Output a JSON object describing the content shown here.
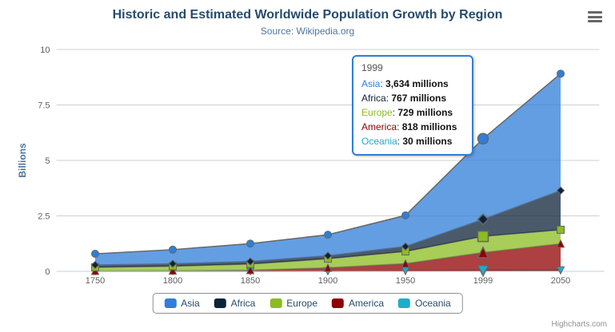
{
  "header": {
    "title": "Historic and Estimated Worldwide Population Growth by Region",
    "subtitle": "Source: Wikipedia.org"
  },
  "chart_data": {
    "type": "area",
    "stacking": "normal",
    "title": "Historic and Estimated Worldwide Population Growth by Region",
    "subtitle": "Source: Wikipedia.org",
    "xlabel": "",
    "ylabel": "Billions",
    "categories": [
      "1750",
      "1800",
      "1850",
      "1900",
      "1950",
      "1999",
      "2050"
    ],
    "yticks": [
      "0",
      "2.5",
      "5",
      "7.5",
      "10"
    ],
    "ylim": [
      0,
      10
    ],
    "values_unit": "millions",
    "y_divisor": 1000,
    "grid": true,
    "legend_position": "bottom",
    "series": [
      {
        "name": "Asia",
        "color": "#2f7ed8",
        "marker": "circle",
        "values": [
          502,
          635,
          809,
          947,
          1402,
          3634,
          5268
        ]
      },
      {
        "name": "Africa",
        "color": "#0d233a",
        "marker": "diamond",
        "values": [
          106,
          107,
          111,
          133,
          221,
          767,
          1766
        ]
      },
      {
        "name": "Europe",
        "color": "#8bbc21",
        "marker": "square",
        "values": [
          163,
          203,
          276,
          408,
          547,
          729,
          628
        ]
      },
      {
        "name": "America",
        "color": "#910000",
        "marker": "triangle",
        "values": [
          18,
          31,
          54,
          156,
          339,
          818,
          1201
        ]
      },
      {
        "name": "Oceania",
        "color": "#1aadce",
        "marker": "triangle-down",
        "values": [
          2,
          2,
          2,
          6,
          13,
          30,
          46
        ]
      }
    ],
    "stack_order_bottom_to_top": [
      "Oceania",
      "America",
      "Europe",
      "Africa",
      "Asia"
    ]
  },
  "tooltip": {
    "header": "1999",
    "hover_index": 5,
    "border_color": "#2f7ed8",
    "unit": "millions",
    "rows": [
      {
        "name": "Asia",
        "value": "3,634"
      },
      {
        "name": "Africa",
        "value": "767"
      },
      {
        "name": "Europe",
        "value": "729"
      },
      {
        "name": "America",
        "value": "818"
      },
      {
        "name": "Oceania",
        "value": "30"
      }
    ]
  },
  "legend": {
    "items": [
      "Asia",
      "Africa",
      "Europe",
      "America",
      "Oceania"
    ]
  },
  "colors": {
    "title": "#274b6d",
    "subtitle": "#4d759e",
    "axis_labels": "#606060",
    "axis_line": "#c0d0e0",
    "gridline": "#d0d0d0",
    "series_outline": "#666666",
    "legend_border": "#909090",
    "credits": "#909090"
  },
  "credits": "Highcharts.com"
}
